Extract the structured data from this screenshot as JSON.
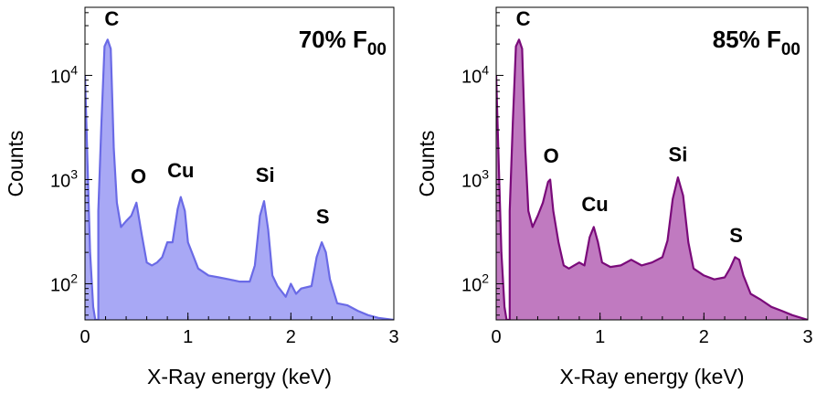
{
  "chart_data": [
    {
      "type": "area",
      "title": "70% F",
      "title_subscript": "00",
      "xlabel": "X-Ray energy (keV)",
      "ylabel": "Counts",
      "xlim": [
        0,
        3
      ],
      "ylim": [
        45,
        45000
      ],
      "yscale": "log",
      "x_ticks": [
        0,
        1,
        2,
        3
      ],
      "y_ticks": [
        100,
        1000,
        10000
      ],
      "y_tick_labels": [
        {
          "base": "10",
          "exp": "2"
        },
        {
          "base": "10",
          "exp": "3"
        },
        {
          "base": "10",
          "exp": "4"
        }
      ],
      "grid": false,
      "colors": {
        "line": "#6A6AE6",
        "fill": "#A8A8F5"
      },
      "series": [
        {
          "x": [
            0.0,
            0.02,
            0.05,
            0.08,
            0.1,
            0.13,
            0.13,
            0.16,
            0.19,
            0.22,
            0.25,
            0.28,
            0.31,
            0.35,
            0.4,
            0.45,
            0.5,
            0.55,
            0.6,
            0.65,
            0.7,
            0.75,
            0.8,
            0.85,
            0.9,
            0.93,
            0.97,
            1.0,
            1.1,
            1.2,
            1.3,
            1.4,
            1.5,
            1.6,
            1.65,
            1.7,
            1.74,
            1.78,
            1.82,
            1.87,
            1.95,
            2.0,
            2.05,
            2.1,
            2.2,
            2.25,
            2.3,
            2.34,
            2.38,
            2.45,
            2.55,
            2.65,
            2.75,
            2.85,
            3.0
          ],
          "y": [
            10000,
            2000,
            200,
            60,
            45,
            45,
            500,
            3500,
            19000,
            22000,
            18000,
            2000,
            600,
            350,
            400,
            450,
            600,
            300,
            160,
            150,
            160,
            180,
            250,
            250,
            520,
            680,
            500,
            250,
            140,
            120,
            115,
            110,
            105,
            105,
            150,
            450,
            620,
            330,
            120,
            95,
            75,
            100,
            80,
            90,
            95,
            180,
            250,
            200,
            110,
            65,
            62,
            55,
            50,
            47,
            45
          ]
        }
      ],
      "annotations": [
        {
          "text": "C",
          "x": 0.26,
          "y": 30000
        },
        {
          "text": "O",
          "x": 0.52,
          "y": 920
        },
        {
          "text": "Cu",
          "x": 0.93,
          "y": 1050
        },
        {
          "text": "Si",
          "x": 1.75,
          "y": 950
        },
        {
          "text": "S",
          "x": 2.31,
          "y": 380
        }
      ]
    },
    {
      "type": "area",
      "title": "85% F",
      "title_subscript": "00",
      "xlabel": "X-Ray energy (keV)",
      "ylabel": "Counts",
      "xlim": [
        0,
        3
      ],
      "ylim": [
        45,
        45000
      ],
      "yscale": "log",
      "x_ticks": [
        0,
        1,
        2,
        3
      ],
      "y_ticks": [
        100,
        1000,
        10000
      ],
      "y_tick_labels": [
        {
          "base": "10",
          "exp": "2"
        },
        {
          "base": "10",
          "exp": "3"
        },
        {
          "base": "10",
          "exp": "4"
        }
      ],
      "grid": false,
      "colors": {
        "line": "#7A0A7A",
        "fill": "#C07AC0"
      },
      "series": [
        {
          "x": [
            0.0,
            0.02,
            0.05,
            0.08,
            0.1,
            0.13,
            0.13,
            0.16,
            0.19,
            0.22,
            0.25,
            0.28,
            0.31,
            0.35,
            0.4,
            0.45,
            0.5,
            0.52,
            0.55,
            0.6,
            0.65,
            0.7,
            0.75,
            0.8,
            0.85,
            0.9,
            0.94,
            0.98,
            1.02,
            1.1,
            1.2,
            1.3,
            1.4,
            1.5,
            1.6,
            1.65,
            1.7,
            1.75,
            1.8,
            1.85,
            1.9,
            2.0,
            2.1,
            2.2,
            2.25,
            2.3,
            2.34,
            2.38,
            2.45,
            2.55,
            2.65,
            2.75,
            2.85,
            3.0
          ],
          "y": [
            10000,
            2000,
            200,
            60,
            45,
            45,
            500,
            3500,
            19000,
            22000,
            18000,
            2000,
            500,
            350,
            450,
            600,
            950,
            1000,
            500,
            250,
            150,
            140,
            150,
            160,
            150,
            280,
            350,
            250,
            160,
            145,
            150,
            170,
            150,
            160,
            180,
            260,
            650,
            1050,
            700,
            250,
            140,
            120,
            110,
            115,
            140,
            180,
            170,
            120,
            80,
            70,
            60,
            55,
            50,
            45
          ]
        }
      ],
      "annotations": [
        {
          "text": "C",
          "x": 0.26,
          "y": 30000
        },
        {
          "text": "O",
          "x": 0.53,
          "y": 1450
        },
        {
          "text": "Cu",
          "x": 0.95,
          "y": 500
        },
        {
          "text": "Si",
          "x": 1.75,
          "y": 1500
        },
        {
          "text": "S",
          "x": 2.31,
          "y": 250
        }
      ]
    }
  ]
}
